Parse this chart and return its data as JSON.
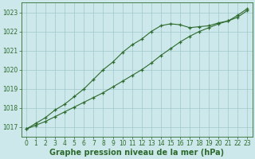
{
  "x": [
    0,
    1,
    2,
    3,
    4,
    5,
    6,
    7,
    8,
    9,
    10,
    11,
    12,
    13,
    14,
    15,
    16,
    17,
    18,
    19,
    20,
    21,
    22,
    23
  ],
  "series1": [
    1016.9,
    1017.2,
    1017.5,
    1017.9,
    1018.2,
    1018.6,
    1019.0,
    1019.5,
    1020.0,
    1020.4,
    1020.9,
    1021.3,
    1021.6,
    1022.0,
    1022.3,
    1022.4,
    1022.35,
    1022.2,
    1022.25,
    1022.3,
    1022.45,
    1022.55,
    1022.85,
    1023.2
  ],
  "series2": [
    1016.9,
    1017.1,
    1017.3,
    1017.55,
    1017.8,
    1018.05,
    1018.3,
    1018.55,
    1018.8,
    1019.1,
    1019.4,
    1019.7,
    1020.0,
    1020.35,
    1020.75,
    1021.1,
    1021.45,
    1021.75,
    1022.0,
    1022.2,
    1022.4,
    1022.55,
    1022.75,
    1023.1
  ],
  "ylim": [
    1016.5,
    1023.5
  ],
  "yticks": [
    1017,
    1018,
    1019,
    1020,
    1021,
    1022,
    1023
  ],
  "xlim": [
    -0.5,
    23.5
  ],
  "xlabel": "Graphe pression niveau de la mer (hPa)",
  "line_color": "#2d6a2d",
  "marker": "+",
  "bg_color": "#cce8ea",
  "grid_color": "#a0c8cc",
  "tick_color": "#2d6a2d",
  "tick_fontsize": 5.5,
  "label_fontsize": 7.0,
  "linewidth": 0.8,
  "markersize": 3.5,
  "markeredgewidth": 0.9
}
